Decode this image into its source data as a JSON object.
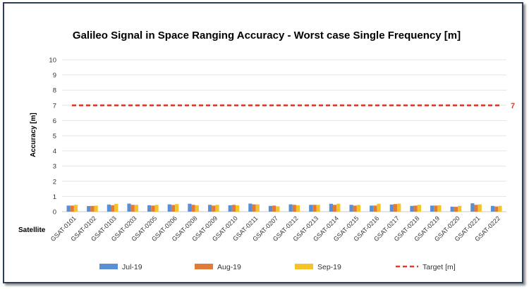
{
  "chart_data": {
    "type": "bar",
    "title": "Galileo Signal in Space Ranging Accuracy - Worst case Single Frequency [m]",
    "ylabel": "Accuracy [m]",
    "xlabel": "Satellite",
    "ylim": [
      0,
      10
    ],
    "yticks": [
      "0",
      "1",
      "2",
      "3",
      "4",
      "5",
      "6",
      "7",
      "8",
      "9",
      "10"
    ],
    "grid": true,
    "legend_position": "bottom",
    "categories": [
      "GSAT-0101",
      "GSAT-0102",
      "GSAT-0103",
      "GSAT-0203",
      "GSAT-0205",
      "GSAT-0206",
      "GSAT-0208",
      "GSAT-0209",
      "GSAT-0210",
      "GSAT-0211",
      "GSAT-0207",
      "GSAT-0212",
      "GSAT-0213",
      "GSAT-0214",
      "GSAT-0215",
      "GSAT-0216",
      "GSAT-0217",
      "GSAT-0218",
      "GSAT-0219",
      "GSAT-0220",
      "GSAT-0221",
      "GSAT-0222"
    ],
    "series": [
      {
        "name": "Jul-19",
        "color": "#5b8fd4",
        "values": [
          0.4,
          0.37,
          0.47,
          0.53,
          0.42,
          0.48,
          0.52,
          0.45,
          0.42,
          0.53,
          0.38,
          0.48,
          0.45,
          0.52,
          0.45,
          0.4,
          0.47,
          0.38,
          0.4,
          0.33,
          0.55,
          0.38
        ]
      },
      {
        "name": "Aug-19",
        "color": "#e07b39",
        "values": [
          0.4,
          0.38,
          0.42,
          0.45,
          0.4,
          0.44,
          0.45,
          0.4,
          0.45,
          0.48,
          0.4,
          0.45,
          0.45,
          0.45,
          0.4,
          0.4,
          0.5,
          0.4,
          0.4,
          0.32,
          0.45,
          0.34
        ]
      },
      {
        "name": "Sep-19",
        "color": "#f5c22a",
        "values": [
          0.45,
          0.4,
          0.52,
          0.45,
          0.45,
          0.5,
          0.42,
          0.45,
          0.42,
          0.48,
          0.35,
          0.42,
          0.45,
          0.52,
          0.45,
          0.52,
          0.53,
          0.45,
          0.42,
          0.38,
          0.48,
          0.38
        ]
      }
    ],
    "target": {
      "name": "Target [m]",
      "value": 7,
      "label": "7",
      "color": "#e03a2b"
    }
  }
}
